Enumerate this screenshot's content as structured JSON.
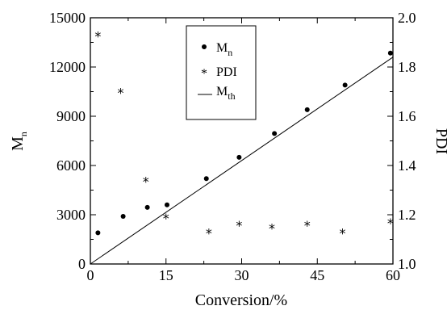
{
  "chart_data": {
    "type": "scatter",
    "xlabel": "Conversion/%",
    "ylabel_left": "M",
    "ylabel_left_sub": "n",
    "ylabel_right": "PDI",
    "xlim": [
      0,
      60
    ],
    "ylim_left": [
      0,
      15000
    ],
    "ylim_right": [
      1.0,
      2.0
    ],
    "x_ticks": [
      0,
      15,
      30,
      45,
      60
    ],
    "y_left_ticks": [
      0,
      3000,
      6000,
      9000,
      12000,
      15000
    ],
    "y_right_ticks": [
      "1.0",
      "1.2",
      "1.4",
      "1.6",
      "1.8",
      "2.0"
    ],
    "legend_position": "top-center",
    "series": [
      {
        "name": "M",
        "name_sub": "n",
        "marker": "dot",
        "axis": "left",
        "x": [
          1.5,
          6.5,
          11.3,
          15.2,
          23.0,
          29.5,
          36.5,
          43.0,
          50.5,
          59.5
        ],
        "y": [
          1900,
          2900,
          3450,
          3600,
          5200,
          6500,
          7950,
          9400,
          10900,
          12850
        ]
      },
      {
        "name": "PDI",
        "marker": "asterisk",
        "axis": "right",
        "x": [
          1.5,
          6.0,
          11.0,
          15.0,
          23.5,
          29.5,
          36.0,
          43.0,
          50.0,
          59.5
        ],
        "y": [
          1.93,
          1.7,
          1.34,
          1.19,
          1.13,
          1.16,
          1.15,
          1.16,
          1.13,
          1.17
        ]
      },
      {
        "name": "M",
        "name_sub": "th",
        "marker": "line",
        "axis": "left",
        "x": [
          0,
          60
        ],
        "y": [
          0,
          12600
        ]
      }
    ]
  }
}
